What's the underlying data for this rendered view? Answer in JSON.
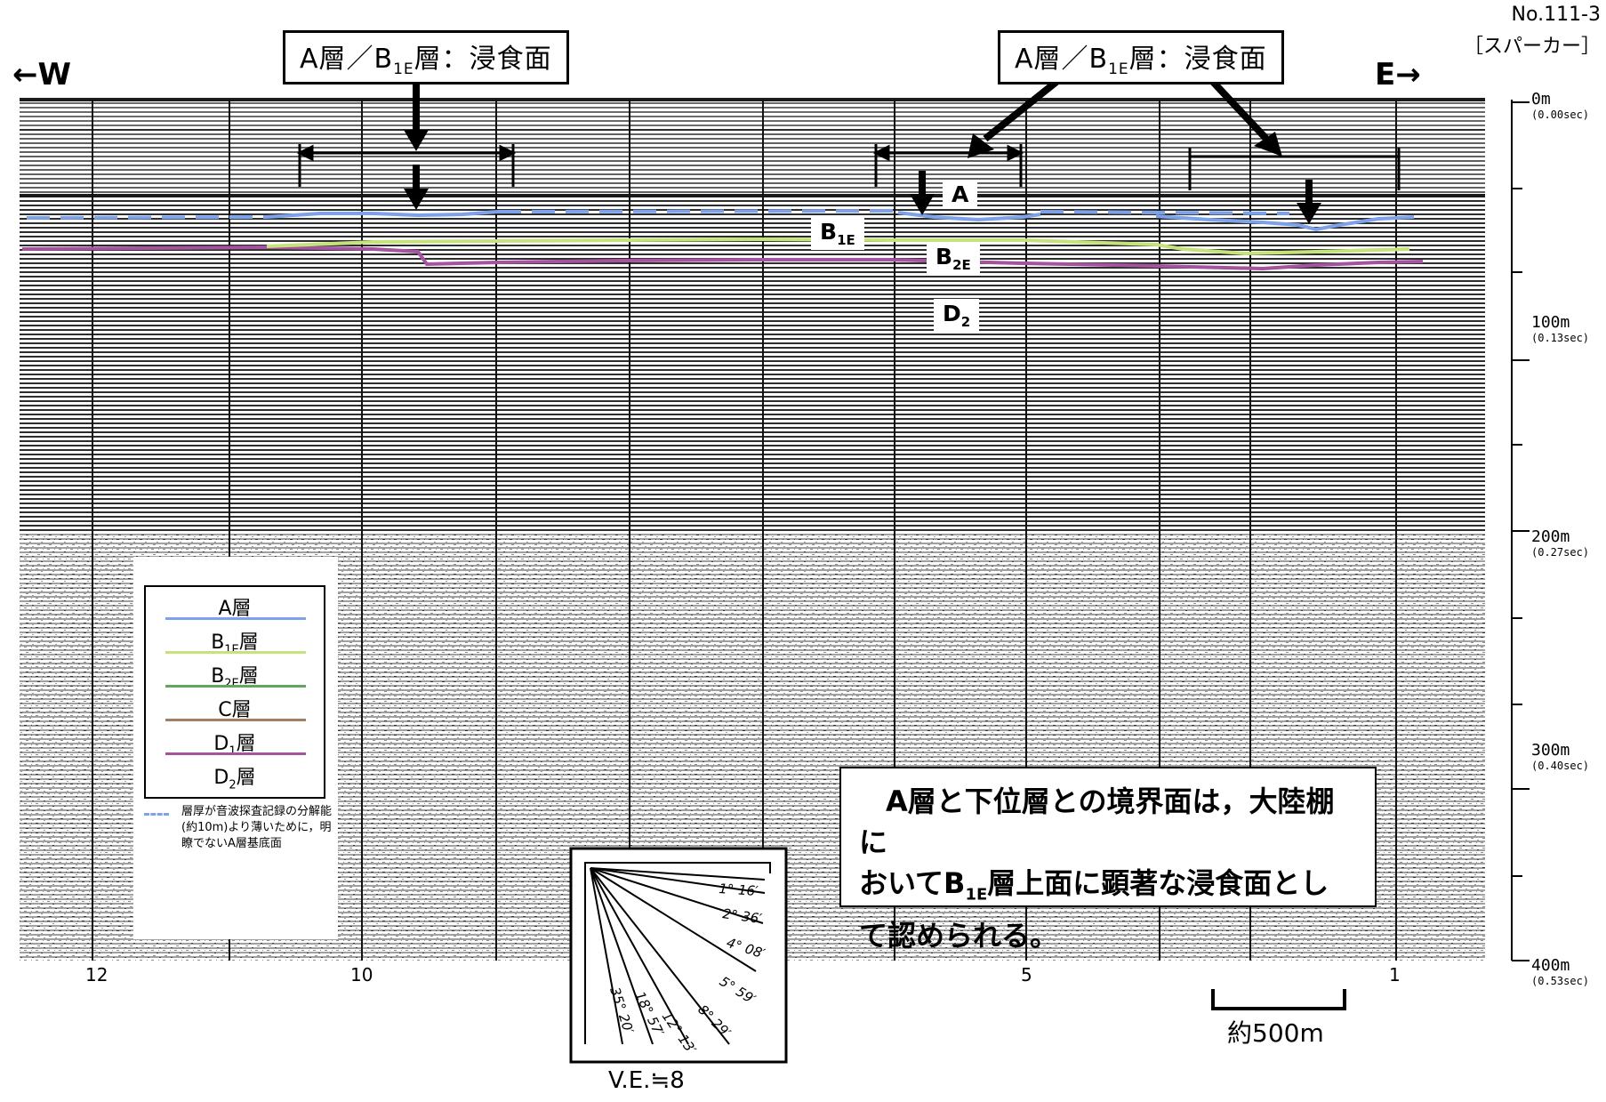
{
  "record_id": "No.111-3",
  "record_type": "［スパーカー］",
  "direction_west": "←W",
  "direction_east": "E→",
  "callouts": [
    {
      "pre": "A層／B",
      "sub": "1E",
      "post": "層：浸食面"
    },
    {
      "pre": "A層／B",
      "sub": "1E",
      "post": "層：浸食面"
    }
  ],
  "layer_labels": [
    {
      "base": "A",
      "sub": ""
    },
    {
      "base": "B",
      "sub": "1E"
    },
    {
      "base": "B",
      "sub": "2E"
    },
    {
      "base": "D",
      "sub": "2"
    }
  ],
  "depth_ticks": [
    {
      "depth": "0m",
      "time": "(0.00sec)"
    },
    {
      "depth": "100m",
      "time": "(0.13sec)"
    },
    {
      "depth": "200m",
      "time": "(0.27sec)"
    },
    {
      "depth": "300m",
      "time": "(0.40sec)"
    },
    {
      "depth": "400m",
      "time": "(0.53sec)"
    }
  ],
  "shot_points": [
    "12",
    "10",
    "5",
    "1"
  ],
  "legend": {
    "items": [
      {
        "pre": "A",
        "sub": "",
        "post": "層",
        "color": "#ffffff"
      },
      {
        "pre": "B",
        "sub": "1E",
        "post": "層",
        "color": "#7da2ea"
      },
      {
        "pre": "B",
        "sub": "2E",
        "post": "層",
        "color": "#c5e27b"
      },
      {
        "pre": "C",
        "sub": "",
        "post": "層",
        "color": "#5fa85f"
      },
      {
        "pre": "D",
        "sub": "1",
        "post": "層",
        "color": "#a07f63"
      },
      {
        "pre": "D",
        "sub": "2",
        "post": "層",
        "color": "#a4539f"
      }
    ],
    "dashed_note": "層厚が音波探査記録の分解能(約10m)より薄いために，明瞭でないA層基底面",
    "dashed_color": "#7da2ea"
  },
  "finding": {
    "line1": "A層と下位層との境界面は，大陸棚に",
    "line2_pre": "おいてB",
    "line2_sub": "1E",
    "line2_post": "層上面に顕著な浸食面とし",
    "line3": "て認められる。"
  },
  "scale_label": "約500m",
  "ve_label": "V.E.≒8",
  "slope_angles": [
    "1° 16′",
    "2° 36′",
    "4° 08′",
    "5° 59′",
    "8° 29′",
    "12° 13′",
    "18° 57′",
    "35° 20′"
  ]
}
